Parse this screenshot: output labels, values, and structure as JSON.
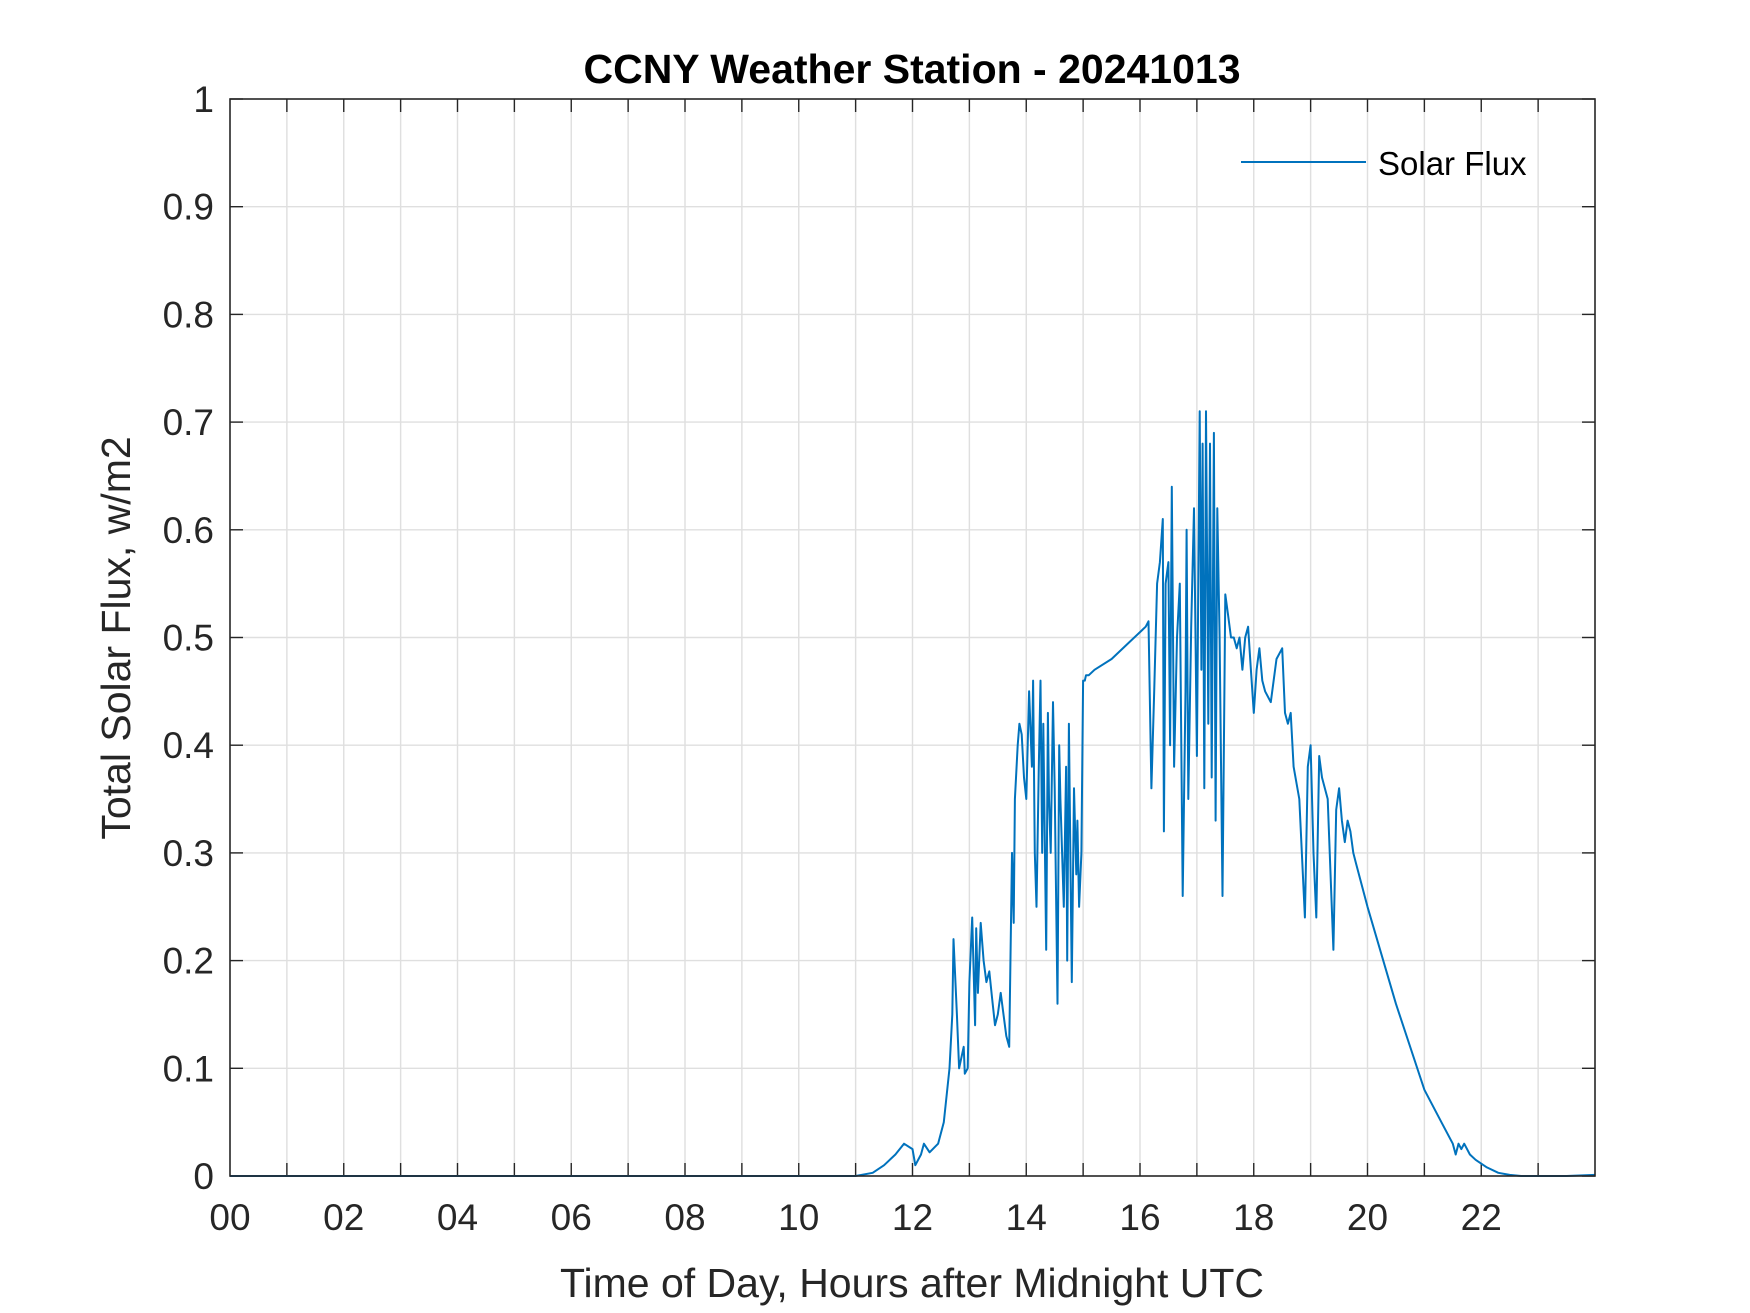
{
  "chart_data": {
    "type": "line",
    "title": "CCNY Weather Station - 20241013",
    "xlabel": "Time of Day, Hours after Midnight UTC",
    "ylabel": "Total Solar Flux, w/m2",
    "xlim": [
      0,
      24
    ],
    "ylim": [
      0,
      1
    ],
    "grid": true,
    "legend_position": "top-right",
    "x_ticks": [
      0,
      2,
      4,
      6,
      8,
      10,
      12,
      14,
      16,
      18,
      20,
      22
    ],
    "x_tick_labels": [
      "00",
      "02",
      "04",
      "06",
      "08",
      "10",
      "12",
      "14",
      "16",
      "18",
      "20",
      "22"
    ],
    "y_ticks": [
      0,
      0.1,
      0.2,
      0.3,
      0.4,
      0.5,
      0.6,
      0.7,
      0.8,
      0.9,
      1
    ],
    "y_tick_labels": [
      "0",
      "0.1",
      "0.2",
      "0.3",
      "0.4",
      "0.5",
      "0.6",
      "0.7",
      "0.8",
      "0.9",
      "1"
    ],
    "series": [
      {
        "name": "Solar Flux",
        "color": "#0072BD",
        "x": [
          0,
          11.0,
          11.3,
          11.5,
          11.7,
          11.85,
          12.0,
          12.05,
          12.15,
          12.2,
          12.3,
          12.45,
          12.55,
          12.65,
          12.7,
          12.72,
          12.78,
          12.82,
          12.9,
          12.92,
          12.97,
          13.0,
          13.05,
          13.1,
          13.12,
          13.15,
          13.2,
          13.25,
          13.3,
          13.35,
          13.4,
          13.45,
          13.5,
          13.55,
          13.6,
          13.65,
          13.7,
          13.75,
          13.78,
          13.8,
          13.85,
          13.88,
          13.92,
          13.96,
          14.0,
          14.05,
          14.1,
          14.12,
          14.15,
          14.18,
          14.22,
          14.25,
          14.28,
          14.3,
          14.35,
          14.38,
          14.4,
          14.43,
          14.47,
          14.5,
          14.52,
          14.55,
          14.58,
          14.6,
          14.63,
          14.66,
          14.7,
          14.72,
          14.75,
          14.8,
          14.84,
          14.88,
          14.9,
          14.93,
          14.97,
          15.0,
          15.03,
          15.05,
          15.1,
          15.2,
          15.5,
          15.8,
          16.0,
          16.1,
          16.15,
          16.2,
          16.25,
          16.3,
          16.35,
          16.4,
          16.42,
          16.45,
          16.5,
          16.53,
          16.56,
          16.6,
          16.65,
          16.7,
          16.75,
          16.8,
          16.82,
          16.85,
          16.9,
          16.95,
          17.0,
          17.05,
          17.08,
          17.1,
          17.13,
          17.16,
          17.2,
          17.23,
          17.26,
          17.3,
          17.33,
          17.36,
          17.4,
          17.45,
          17.5,
          17.55,
          17.6,
          17.65,
          17.7,
          17.75,
          17.8,
          17.85,
          17.9,
          17.95,
          18.0,
          18.05,
          18.1,
          18.15,
          18.2,
          18.3,
          18.4,
          18.5,
          18.55,
          18.6,
          18.65,
          18.7,
          18.8,
          18.9,
          18.95,
          19.0,
          19.05,
          19.1,
          19.15,
          19.2,
          19.3,
          19.4,
          19.45,
          19.5,
          19.55,
          19.6,
          19.65,
          19.7,
          19.75,
          19.8,
          20.0,
          20.5,
          21.0,
          21.3,
          21.5,
          21.55,
          21.6,
          21.65,
          21.7,
          21.8,
          21.9,
          22.1,
          22.3,
          22.5,
          22.7,
          23.0,
          23.5,
          24.0
        ],
        "values": [
          0,
          0,
          0.003,
          0.01,
          0.02,
          0.03,
          0.025,
          0.01,
          0.02,
          0.03,
          0.022,
          0.03,
          0.05,
          0.1,
          0.15,
          0.22,
          0.15,
          0.1,
          0.12,
          0.095,
          0.1,
          0.18,
          0.24,
          0.14,
          0.23,
          0.17,
          0.235,
          0.2,
          0.18,
          0.19,
          0.165,
          0.14,
          0.15,
          0.17,
          0.15,
          0.13,
          0.12,
          0.3,
          0.235,
          0.35,
          0.4,
          0.42,
          0.41,
          0.37,
          0.35,
          0.45,
          0.38,
          0.46,
          0.3,
          0.25,
          0.38,
          0.46,
          0.3,
          0.42,
          0.21,
          0.43,
          0.35,
          0.3,
          0.44,
          0.36,
          0.28,
          0.16,
          0.4,
          0.35,
          0.3,
          0.25,
          0.38,
          0.2,
          0.42,
          0.18,
          0.36,
          0.28,
          0.33,
          0.25,
          0.3,
          0.46,
          0.46,
          0.465,
          0.465,
          0.47,
          0.48,
          0.495,
          0.505,
          0.51,
          0.515,
          0.36,
          0.45,
          0.55,
          0.57,
          0.61,
          0.32,
          0.55,
          0.57,
          0.4,
          0.64,
          0.38,
          0.5,
          0.55,
          0.26,
          0.45,
          0.6,
          0.35,
          0.51,
          0.62,
          0.39,
          0.71,
          0.47,
          0.68,
          0.36,
          0.71,
          0.42,
          0.68,
          0.37,
          0.69,
          0.33,
          0.62,
          0.5,
          0.26,
          0.54,
          0.52,
          0.5,
          0.5,
          0.49,
          0.5,
          0.47,
          0.5,
          0.51,
          0.47,
          0.43,
          0.47,
          0.49,
          0.46,
          0.45,
          0.44,
          0.48,
          0.49,
          0.43,
          0.42,
          0.43,
          0.38,
          0.35,
          0.24,
          0.38,
          0.4,
          0.3,
          0.24,
          0.39,
          0.37,
          0.35,
          0.21,
          0.34,
          0.36,
          0.33,
          0.31,
          0.33,
          0.32,
          0.3,
          0.29,
          0.25,
          0.16,
          0.08,
          0.05,
          0.03,
          0.02,
          0.03,
          0.025,
          0.03,
          0.02,
          0.015,
          0.008,
          0.003,
          0.001,
          0,
          0,
          0,
          0.001
        ]
      }
    ]
  }
}
